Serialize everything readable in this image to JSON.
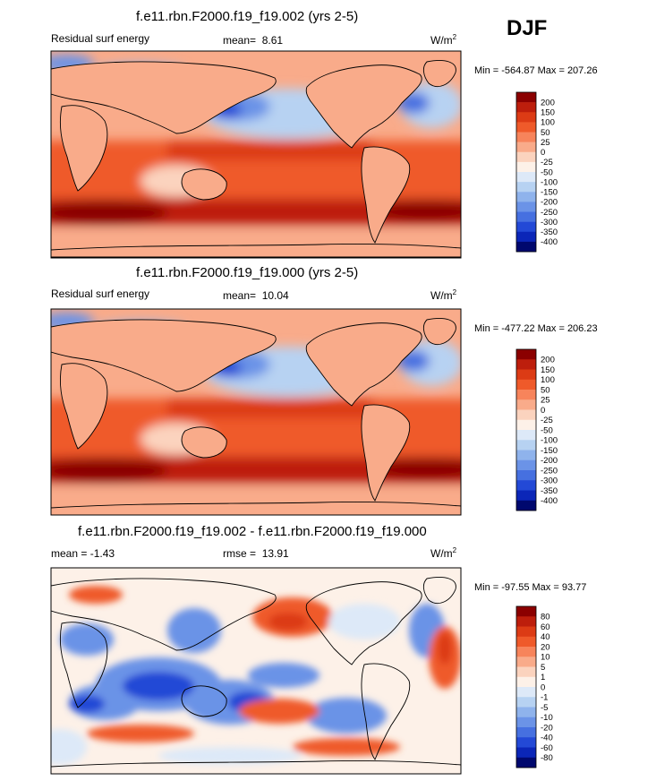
{
  "season": "DJF",
  "panels": [
    {
      "title": "f.e11.rbn.F2000.f19_f19.002 (yrs 2-5)",
      "left_label": "Residual surf energy",
      "mean_label": "mean=",
      "mean_value": "8.61",
      "units": "W/m",
      "units_sup": "2",
      "minmax": "Min = -564.87 Max = 207.26"
    },
    {
      "title": "f.e11.rbn.F2000.f19_f19.000 (yrs 2-5)",
      "left_label": "Residual surf energy",
      "mean_label": "mean=",
      "mean_value": "10.04",
      "units": "W/m",
      "units_sup": "2",
      "minmax": "Min = -477.22 Max = 206.23"
    },
    {
      "title": "f.e11.rbn.F2000.f19_f19.002 - f.e11.rbn.F2000.f19_f19.000",
      "left_label": "mean =  -1.43",
      "mean_label": "rmse =",
      "mean_value": "13.91",
      "units": "W/m",
      "units_sup": "2",
      "minmax": "Min = -97.55 Max =  93.77"
    }
  ],
  "chart_data": [
    {
      "type": "heatmap",
      "title": "f.e11.rbn.F2000.f19_f19.002 (yrs 2-5)",
      "variable": "Residual surf energy",
      "mean": 8.61,
      "min": -564.87,
      "max": 207.26,
      "colorbar_levels": [
        "200",
        "150",
        "100",
        "50",
        "25",
        "0",
        "-25",
        "-50",
        "-100",
        "-150",
        "-200",
        "-250",
        "-300",
        "-350",
        "-400"
      ],
      "colorbar_colors": [
        "#8b0000",
        "#bd1e0c",
        "#dc3b15",
        "#ef5a2a",
        "#f7845b",
        "#f9ab8a",
        "#fbd3be",
        "#fdf1e8",
        "#dde9f8",
        "#b7d2f2",
        "#8fb3ec",
        "#6b93e7",
        "#4670e0",
        "#2349d6",
        "#0b26b8",
        "#00086e"
      ],
      "xlim": [
        0,
        360
      ],
      "ylim": [
        -90,
        90
      ]
    },
    {
      "type": "heatmap",
      "title": "f.e11.rbn.F2000.f19_f19.000 (yrs 2-5)",
      "variable": "Residual surf energy",
      "mean": 10.04,
      "min": -477.22,
      "max": 206.23,
      "colorbar_levels": [
        "200",
        "150",
        "100",
        "50",
        "25",
        "0",
        "-25",
        "-50",
        "-100",
        "-150",
        "-200",
        "-250",
        "-300",
        "-350",
        "-400"
      ],
      "colorbar_colors": [
        "#8b0000",
        "#bd1e0c",
        "#dc3b15",
        "#ef5a2a",
        "#f7845b",
        "#f9ab8a",
        "#fbd3be",
        "#fdf1e8",
        "#dde9f8",
        "#b7d2f2",
        "#8fb3ec",
        "#6b93e7",
        "#4670e0",
        "#2349d6",
        "#0b26b8",
        "#00086e"
      ],
      "xlim": [
        0,
        360
      ],
      "ylim": [
        -90,
        90
      ]
    },
    {
      "type": "heatmap",
      "title": "f.e11.rbn.F2000.f19_f19.002 - f.e11.rbn.F2000.f19_f19.000",
      "mean": -1.43,
      "rmse": 13.91,
      "min": -97.55,
      "max": 93.77,
      "colorbar_levels": [
        "80",
        "60",
        "40",
        "20",
        "10",
        "5",
        "1",
        "0",
        "-1",
        "-5",
        "-10",
        "-20",
        "-40",
        "-60",
        "-80"
      ],
      "colorbar_colors": [
        "#8b0000",
        "#bd1e0c",
        "#dc3b15",
        "#ef5a2a",
        "#f7845b",
        "#f9ab8a",
        "#fbd3be",
        "#fdf1e8",
        "#dde9f8",
        "#b7d2f2",
        "#8fb3ec",
        "#6b93e7",
        "#4670e0",
        "#2349d6",
        "#0b26b8",
        "#00086e"
      ],
      "xlim": [
        0,
        360
      ],
      "ylim": [
        -90,
        90
      ]
    }
  ]
}
